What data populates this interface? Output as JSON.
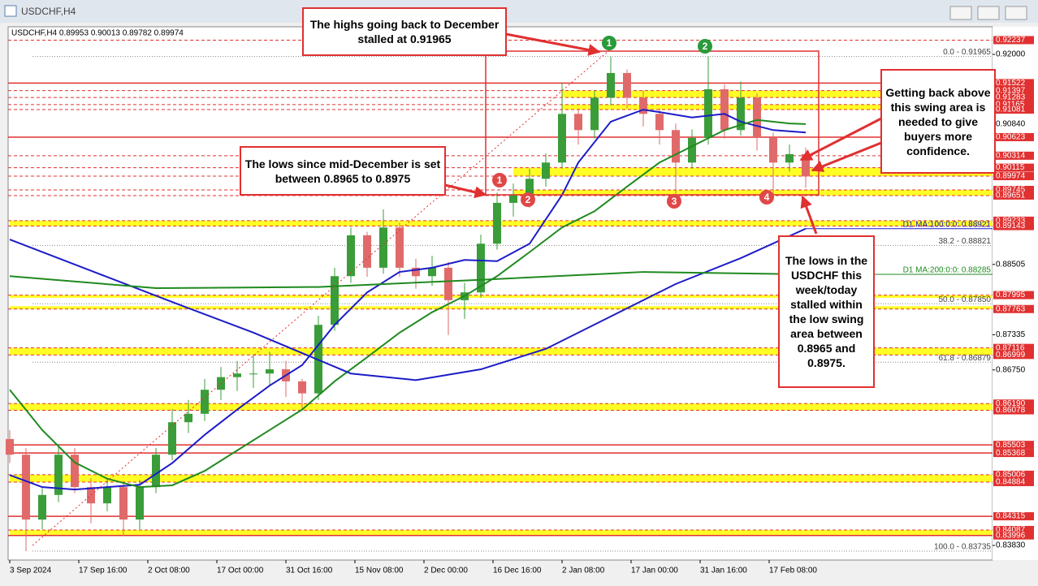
{
  "window_title": "USDCHF,H4",
  "chart_data": {
    "type": "candlestick",
    "info": "USDCHF,H4  0.89953 0.90013 0.89782 0.89974",
    "open": [
      0.856,
      0.8534,
      0.8426,
      0.8467,
      0.8534,
      0.848,
      0.8453,
      0.848,
      0.8426,
      0.848,
      0.8534,
      0.8588,
      0.8602,
      0.8642,
      0.8663,
      0.8669,
      0.8669,
      0.8676,
      0.8656,
      0.8636,
      0.875,
      0.8831,
      0.8899,
      0.8845,
      0.8912,
      0.8845,
      0.8831,
      0.8845,
      0.8791,
      0.8804,
      0.8885,
      0.8953,
      0.8966,
      0.8993,
      0.902,
      0.9101,
      0.9074,
      0.9128,
      0.9169,
      0.9128,
      0.9101,
      0.9074,
      0.902,
      0.9061,
      0.9142,
      0.9074,
      0.9128,
      0.9061,
      0.902,
      0.9034
    ],
    "high": [
      0.8575,
      0.8545,
      0.8478,
      0.8552,
      0.8545,
      0.8495,
      0.8495,
      0.849,
      0.8492,
      0.8545,
      0.861,
      0.8625,
      0.866,
      0.868,
      0.869,
      0.87,
      0.8705,
      0.869,
      0.866,
      0.8765,
      0.8845,
      0.8912,
      0.8905,
      0.8942,
      0.892,
      0.886,
      0.8865,
      0.8855,
      0.882,
      0.89,
      0.897,
      0.8985,
      0.901,
      0.9035,
      0.9152,
      0.911,
      0.914,
      0.91965,
      0.9175,
      0.914,
      0.911,
      0.9085,
      0.9075,
      0.91965,
      0.915,
      0.9155,
      0.9135,
      0.907,
      0.905,
      0.9045
    ],
    "low": [
      0.852,
      0.83735,
      0.841,
      0.8455,
      0.847,
      0.842,
      0.844,
      0.8399,
      0.841,
      0.847,
      0.8525,
      0.857,
      0.859,
      0.8625,
      0.864,
      0.8645,
      0.865,
      0.863,
      0.8608,
      0.8625,
      0.874,
      0.882,
      0.883,
      0.8835,
      0.883,
      0.881,
      0.8815,
      0.8733,
      0.876,
      0.8795,
      0.8875,
      0.893,
      0.8945,
      0.898,
      0.901,
      0.905,
      0.906,
      0.9115,
      0.911,
      0.908,
      0.905,
      0.8965,
      0.901,
      0.905,
      0.906,
      0.9065,
      0.904,
      0.8967,
      0.9005,
      0.8978
    ],
    "close": [
      0.8534,
      0.8426,
      0.8467,
      0.8534,
      0.848,
      0.8453,
      0.848,
      0.8426,
      0.848,
      0.8534,
      0.8588,
      0.8602,
      0.8642,
      0.8663,
      0.8669,
      0.8669,
      0.8676,
      0.8656,
      0.8636,
      0.875,
      0.8831,
      0.8899,
      0.8845,
      0.8912,
      0.8845,
      0.8831,
      0.8845,
      0.8791,
      0.8804,
      0.8885,
      0.8953,
      0.8966,
      0.8993,
      0.902,
      0.9101,
      0.9074,
      0.9128,
      0.9169,
      0.9128,
      0.9101,
      0.9074,
      0.902,
      0.9061,
      0.9142,
      0.9074,
      0.9128,
      0.9061,
      0.902,
      0.9034,
      0.8997
    ],
    "up_color": "#3a9d3a",
    "down_color": "#e06a6a",
    "series": [
      {
        "color": "#1c1cc8",
        "x": [
          0,
          2,
          4,
          6,
          8,
          10,
          12,
          14,
          16,
          18,
          20,
          22,
          24,
          26,
          28,
          30,
          32,
          34,
          35,
          37,
          39,
          40,
          42,
          44,
          45,
          47,
          49
        ],
        "values": [
          0.85,
          0.848,
          0.8476,
          0.848,
          0.8484,
          0.852,
          0.8567,
          0.8609,
          0.8649,
          0.8683,
          0.875,
          0.8804,
          0.8838,
          0.8845,
          0.8858,
          0.8856,
          0.8885,
          0.8966,
          0.902,
          0.9088,
          0.9108,
          0.9104,
          0.9095,
          0.9101,
          0.9088,
          0.9074,
          0.907
        ]
      },
      {
        "color": "#1f8a1f",
        "x": [
          0,
          2,
          4,
          6,
          8,
          10,
          12,
          14,
          16,
          18,
          20,
          22,
          24,
          26,
          28,
          30,
          32,
          34,
          36,
          38,
          40,
          42,
          44,
          46,
          48,
          49
        ],
        "values": [
          0.8642,
          0.8575,
          0.8521,
          0.8494,
          0.848,
          0.8483,
          0.8507,
          0.8541,
          0.8575,
          0.8609,
          0.8656,
          0.8696,
          0.8737,
          0.8771,
          0.8798,
          0.8831,
          0.8871,
          0.8912,
          0.8939,
          0.898,
          0.902,
          0.9047,
          0.9074,
          0.9091,
          0.9085,
          0.9084
        ]
      },
      {
        "name": "D1 MA:100:0:0: 0.88921",
        "color": "#1c1cc8",
        "x": [
          0,
          5,
          10,
          15,
          21,
          25,
          29,
          33,
          37,
          41,
          45,
          49
        ],
        "values": [
          0.8892,
          0.884,
          0.8788,
          0.8737,
          0.8669,
          0.8658,
          0.8676,
          0.871,
          0.8764,
          0.8818,
          0.8861,
          0.891
        ]
      },
      {
        "name": "D1 MA:200:0:0: 0.88285",
        "color": "#1f8a1f",
        "x": [
          0,
          9,
          19,
          29,
          39,
          49
        ],
        "values": [
          0.8831,
          0.8811,
          0.8813,
          0.8825,
          0.8838,
          0.8834
        ]
      }
    ],
    "xlim": [
      -0.1,
      60.5
    ],
    "xticks": [
      {
        "value": 0,
        "label": "3 Sep 2024"
      },
      {
        "value": 4.25,
        "label": "17 Sep 16:00"
      },
      {
        "value": 8.5,
        "label": "2 Oct 08:00"
      },
      {
        "value": 12.75,
        "label": "17 Oct 00:00"
      },
      {
        "value": 17,
        "label": "31 Oct 16:00"
      },
      {
        "value": 21.25,
        "label": "15 Nov 08:00"
      },
      {
        "value": 25.5,
        "label": "2 Dec 00:00"
      },
      {
        "value": 29.75,
        "label": "16 Dec 16:00"
      },
      {
        "value": 34,
        "label": "2 Jan 08:00"
      },
      {
        "value": 38.25,
        "label": "17 Jan 00:00"
      },
      {
        "value": 42.5,
        "label": "31 Jan 16:00"
      },
      {
        "value": 46.75,
        "label": "17 Feb 08:00"
      }
    ],
    "ylim": [
      0.83587,
      0.92459
    ],
    "yticks": [
      {
        "value": 0.92,
        "label": "0.92000"
      },
      {
        "value": 0.9084,
        "label": "0.90840"
      },
      0.88505,
      0.87335,
      {
        "value": 0.8675,
        "label": "0.86750"
      },
      {
        "value": 0.8383,
        "label": "0.83830"
      }
    ],
    "levels": [
      {
        "value": 0.92237,
        "line": "dashed"
      },
      {
        "value": 0.91522,
        "line": "solid"
      },
      {
        "value": 0.91397,
        "line": "dashed"
      },
      {
        "value": 0.91283,
        "line": "dashed"
      },
      {
        "value": 0.91165,
        "line": "dashed"
      },
      {
        "value": 0.91081,
        "line": "dashed"
      },
      {
        "value": 0.90623,
        "line": "solid"
      },
      {
        "value": 0.90314,
        "line": "dashed"
      },
      {
        "value": 0.90115,
        "line": "dashed"
      },
      {
        "value": 0.89974,
        "line": "dashed"
      },
      {
        "value": 0.89745,
        "line": "dashed"
      },
      {
        "value": 0.89651,
        "line": "dashed"
      },
      {
        "value": 0.89233,
        "line": "dashed"
      },
      {
        "value": 0.89143,
        "line": "dashed"
      },
      {
        "value": 0.87995,
        "line": "dashed"
      },
      {
        "value": 0.87763,
        "line": "dashed"
      },
      {
        "value": 0.87116,
        "line": "dashed"
      },
      {
        "value": 0.86999,
        "line": "dashed"
      },
      {
        "value": 0.8619,
        "label": "0.86190",
        "line": "dashed"
      },
      {
        "value": 0.86078,
        "line": "dashed"
      },
      {
        "value": 0.85503,
        "line": "solid"
      },
      {
        "value": 0.85368,
        "line": "solid"
      },
      {
        "value": 0.85006,
        "line": "dashed"
      },
      {
        "value": 0.84884,
        "line": "dashed"
      },
      {
        "value": 0.84315,
        "line": "solid"
      },
      {
        "value": 0.84087,
        "line": "dashed"
      },
      {
        "value": 0.83996,
        "line": "solid"
      }
    ],
    "zones": [
      {
        "range": [
          0.91283,
          0.91397
        ],
        "from": 34
      },
      {
        "range": [
          0.91081,
          0.91165
        ],
        "from": 34
      },
      {
        "range": [
          0.89974,
          0.90115
        ],
        "from": 31
      },
      {
        "range": [
          0.89651,
          0.89745
        ],
        "from": 31
      },
      {
        "range": [
          0.89143,
          0.89233
        ],
        "from": 0
      },
      {
        "range": [
          0.8795,
          0.87995
        ],
        "from": 0
      },
      {
        "range": [
          0.87763,
          0.8781
        ],
        "from": 0
      },
      {
        "range": [
          0.86999,
          0.87116
        ],
        "from": 0
      },
      {
        "range": [
          0.86078,
          0.8619
        ],
        "from": 0
      },
      {
        "range": [
          0.84884,
          0.85006
        ],
        "from": 0
      },
      {
        "range": [
          0.83996,
          0.84087
        ],
        "from": 0
      }
    ],
    "zone_color": "#ffff00",
    "fib": [
      {
        "value": 0.91965,
        "label": "0.0 - 0.91965"
      },
      {
        "value": 0.88821,
        "label": "38.2 - 0.88821"
      },
      {
        "value": 0.8785,
        "label": "50.0 - 0.87850"
      },
      {
        "value": 0.86879,
        "label": "61.8 - 0.86879"
      },
      {
        "value": 0.83735,
        "label": "100.0 - 0.83735"
      }
    ],
    "markers": [
      {
        "label": "1",
        "color": "#2a9a3a"
      },
      {
        "label": "2",
        "color": "#2a9a3a"
      },
      {
        "label": "1",
        "color": "#e04848"
      },
      {
        "label": "2",
        "color": "#e04848"
      },
      {
        "label": "3",
        "color": "#e04848"
      },
      {
        "label": "4",
        "color": "#e04848"
      }
    ],
    "annotations": [
      "The highs going back to December stalled at 0.91965",
      "The lows since mid-December is set between 0.8965 to 0.8975",
      "Getting back above this swing area is needed to give buyers more confidence.",
      "The lows in the USDCHF this week/today stalled within the low swing area between 0.8965 and 0.8975."
    ]
  }
}
